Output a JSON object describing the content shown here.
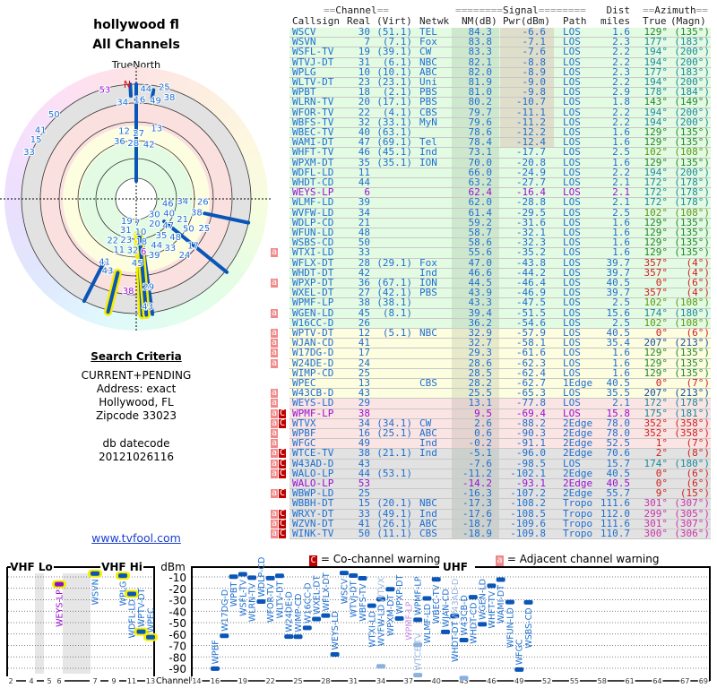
{
  "left": {
    "title": "hollywood fl",
    "subtitle": "All Channels",
    "true_north": "TrueNorth",
    "north_mark": "N",
    "search_criteria_heading": "Search Criteria",
    "criteria": [
      "CURRENT+PENDING",
      "Address: exact",
      "Hollywood, FL",
      "Zipcode 33023"
    ],
    "db_datecode_label": "db datecode",
    "db_datecode": "20121026116",
    "link": "www.tvfool.com"
  },
  "header": {
    "channel": "Channel",
    "signal": "Signal",
    "dist": "Dist",
    "azimuth": "Azimuth",
    "callsign": "Callsign",
    "real": "Real",
    "virt": "(Virt)",
    "netwk": "Netwk",
    "nm": "NM(dB)",
    "pwr": "Pwr(dBm)",
    "path": "Path",
    "miles": "miles",
    "true": "True",
    "magn": "(Magn)"
  },
  "colors": {
    "zone_green": "#e3fbe3",
    "zone_yellow": "#fdfde0",
    "zone_red": "#fbe4e4",
    "zone_gray": "#e2e2e2",
    "text_blue": "#1e6fd0",
    "text_purple": "#9a10d0",
    "adjacent_flag": "#f08a8a",
    "cochannel_flag": "#c00000",
    "bar_blue": "#0a55b8",
    "vhf_outline": "#f5ee00"
  },
  "rows": [
    {
      "call": "WSCV",
      "real": "30",
      "virt": "(51.1)",
      "net": "TEL",
      "nm": "84.3",
      "pwr": "-6.6",
      "path": "LOS",
      "dist": "1.6",
      "az": "129°",
      "mag": "(135°)",
      "zone": "green"
    },
    {
      "call": "WSVN",
      "real": "7",
      "virt": "(7.1)",
      "net": "Fox",
      "nm": "83.8",
      "pwr": "-7.1",
      "path": "LOS",
      "dist": "2.3",
      "az": "177°",
      "mag": "(183°)",
      "zone": "green"
    },
    {
      "call": "WSFL-TV",
      "real": "19",
      "virt": "(39.1)",
      "net": "CW",
      "nm": "83.3",
      "pwr": "-7.6",
      "path": "LOS",
      "dist": "2.2",
      "az": "194°",
      "mag": "(200°)",
      "zone": "green"
    },
    {
      "call": "WTVJ-DT",
      "real": "31",
      "virt": "(6.1)",
      "net": "NBC",
      "nm": "82.1",
      "pwr": "-8.8",
      "path": "LOS",
      "dist": "2.2",
      "az": "194°",
      "mag": "(200°)",
      "zone": "green"
    },
    {
      "call": "WPLG",
      "real": "10",
      "virt": "(10.1)",
      "net": "ABC",
      "nm": "82.0",
      "pwr": "-8.9",
      "path": "LOS",
      "dist": "2.3",
      "az": "177°",
      "mag": "(183°)",
      "zone": "green"
    },
    {
      "call": "WLTV-DT",
      "real": "23",
      "virt": "(23.1)",
      "net": "Uni",
      "nm": "81.9",
      "pwr": "-9.0",
      "path": "LOS",
      "dist": "2.2",
      "az": "194°",
      "mag": "(200°)",
      "zone": "green"
    },
    {
      "call": "WPBT",
      "real": "18",
      "virt": "(2.1)",
      "net": "PBS",
      "nm": "81.0",
      "pwr": "-9.8",
      "path": "LOS",
      "dist": "2.9",
      "az": "178°",
      "mag": "(184°)",
      "zone": "green"
    },
    {
      "call": "WLRN-TV",
      "real": "20",
      "virt": "(17.1)",
      "net": "PBS",
      "nm": "80.2",
      "pwr": "-10.7",
      "path": "LOS",
      "dist": "1.8",
      "az": "143°",
      "mag": "(149°)",
      "zone": "green"
    },
    {
      "call": "WFOR-TV",
      "real": "22",
      "virt": "(4.1)",
      "net": "CBS",
      "nm": "79.7",
      "pwr": "-11.1",
      "path": "LOS",
      "dist": "2.2",
      "az": "194°",
      "mag": "(200°)",
      "zone": "green"
    },
    {
      "call": "WBFS-TV",
      "real": "32",
      "virt": "(33.1)",
      "net": "MyN",
      "nm": "79.6",
      "pwr": "-11.2",
      "path": "LOS",
      "dist": "2.2",
      "az": "194°",
      "mag": "(200°)",
      "zone": "green"
    },
    {
      "call": "WBEC-TV",
      "real": "40",
      "virt": "(63.1)",
      "net": "",
      "nm": "78.6",
      "pwr": "-12.2",
      "path": "LOS",
      "dist": "1.6",
      "az": "129°",
      "mag": "(135°)",
      "zone": "green"
    },
    {
      "call": "WAMI-DT",
      "real": "47",
      "virt": "(69.1)",
      "net": "Tel",
      "nm": "78.4",
      "pwr": "-12.4",
      "path": "LOS",
      "dist": "1.6",
      "az": "129°",
      "mag": "(135°)",
      "zone": "green"
    },
    {
      "call": "WHFT-TV",
      "real": "46",
      "virt": "(45.1)",
      "net": "Ind",
      "nm": "73.1",
      "pwr": "-17.7",
      "path": "LOS",
      "dist": "2.5",
      "az": "102°",
      "mag": "(108°)",
      "zone": "green"
    },
    {
      "call": "WPXM-DT",
      "real": "35",
      "virt": "(35.1)",
      "net": "ION",
      "nm": "70.0",
      "pwr": "-20.8",
      "path": "LOS",
      "dist": "1.6",
      "az": "129°",
      "mag": "(135°)",
      "zone": "green"
    },
    {
      "call": "WDFL-LD",
      "real": "11",
      "virt": "",
      "net": "",
      "nm": "66.0",
      "pwr": "-24.9",
      "path": "LOS",
      "dist": "2.2",
      "az": "194°",
      "mag": "(200°)",
      "zone": "green"
    },
    {
      "call": "WHDT-CD",
      "real": "44",
      "virt": "",
      "net": "",
      "nm": "63.2",
      "pwr": "-27.7",
      "path": "LOS",
      "dist": "2.1",
      "az": "172°",
      "mag": "(178°)",
      "zone": "green"
    },
    {
      "call": "WEYS-LP",
      "real": "6",
      "virt": "",
      "net": "",
      "nm": "62.4",
      "pwr": "-16.4",
      "path": "LOS",
      "dist": "2.1",
      "az": "172°",
      "mag": "(178°)",
      "zone": "green",
      "purple": true
    },
    {
      "call": "WLMF-LD",
      "real": "39",
      "virt": "",
      "net": "",
      "nm": "62.0",
      "pwr": "-28.8",
      "path": "LOS",
      "dist": "2.1",
      "az": "172°",
      "mag": "(178°)",
      "zone": "green"
    },
    {
      "call": "WVFW-LD",
      "real": "34",
      "virt": "",
      "net": "",
      "nm": "61.4",
      "pwr": "-29.5",
      "path": "LOS",
      "dist": "2.5",
      "az": "102°",
      "mag": "(108°)",
      "zone": "green"
    },
    {
      "call": "WDLP-CD",
      "real": "21",
      "virt": "",
      "net": "",
      "nm": "59.2",
      "pwr": "-31.6",
      "path": "LOS",
      "dist": "1.6",
      "az": "129°",
      "mag": "(135°)",
      "zone": "green"
    },
    {
      "call": "WFUN-LD",
      "real": "48",
      "virt": "",
      "net": "",
      "nm": "58.7",
      "pwr": "-32.1",
      "path": "LOS",
      "dist": "1.6",
      "az": "129°",
      "mag": "(135°)",
      "zone": "green"
    },
    {
      "call": "WSBS-CD",
      "real": "50",
      "virt": "",
      "net": "",
      "nm": "58.6",
      "pwr": "-32.3",
      "path": "LOS",
      "dist": "1.6",
      "az": "129°",
      "mag": "(135°)",
      "zone": "green"
    },
    {
      "call": "WTXI-LD",
      "real": "33",
      "virt": "",
      "net": "",
      "nm": "55.6",
      "pwr": "-35.2",
      "path": "LOS",
      "dist": "1.6",
      "az": "129°",
      "mag": "(135°)",
      "zone": "green",
      "adj": "a"
    },
    {
      "call": "WFLX-DT",
      "real": "28",
      "virt": "(29.1)",
      "net": "Fox",
      "nm": "47.0",
      "pwr": "-43.8",
      "path": "LOS",
      "dist": "39.7",
      "az": "357°",
      "mag": "(4°)",
      "zone": "green"
    },
    {
      "call": "WHDT-DT",
      "real": "42",
      "virt": "",
      "net": "Ind",
      "nm": "46.6",
      "pwr": "-44.2",
      "path": "LOS",
      "dist": "39.7",
      "az": "357°",
      "mag": "(4°)",
      "zone": "green"
    },
    {
      "call": "WPXP-DT",
      "real": "36",
      "virt": "(67.1)",
      "net": "ION",
      "nm": "44.5",
      "pwr": "-46.4",
      "path": "LOS",
      "dist": "40.5",
      "az": "0°",
      "mag": "(6°)",
      "zone": "green",
      "adj": "a"
    },
    {
      "call": "WXEL-DT",
      "real": "27",
      "virt": "(42.1)",
      "net": "PBS",
      "nm": "43.9",
      "pwr": "-46.9",
      "path": "LOS",
      "dist": "39.7",
      "az": "357°",
      "mag": "(4°)",
      "zone": "green"
    },
    {
      "call": "WPMF-LP",
      "real": "38",
      "virt": "(38.1)",
      "net": "",
      "nm": "43.3",
      "pwr": "-47.5",
      "path": "LOS",
      "dist": "2.5",
      "az": "102°",
      "mag": "(108°)",
      "zone": "green"
    },
    {
      "call": "WGEN-LD",
      "real": "45",
      "virt": "(8.1)",
      "net": "",
      "nm": "39.4",
      "pwr": "-51.5",
      "path": "LOS",
      "dist": "15.6",
      "az": "174°",
      "mag": "(180°)",
      "zone": "green",
      "adj": "a"
    },
    {
      "call": "W16CC-D",
      "real": "26",
      "virt": "",
      "net": "",
      "nm": "36.2",
      "pwr": "-54.6",
      "path": "LOS",
      "dist": "2.5",
      "az": "102°",
      "mag": "(108°)",
      "zone": "green"
    },
    {
      "call": "WPTV-DT",
      "real": "12",
      "virt": "(5.1)",
      "net": "NBC",
      "nm": "32.9",
      "pwr": "-57.9",
      "path": "LOS",
      "dist": "40.5",
      "az": "0°",
      "mag": "(6°)",
      "zone": "yellow",
      "adj": "a"
    },
    {
      "call": "WJAN-CD",
      "real": "41",
      "virt": "",
      "net": "",
      "nm": "32.7",
      "pwr": "-58.1",
      "path": "LOS",
      "dist": "35.4",
      "az": "207°",
      "mag": "(213°)",
      "zone": "yellow",
      "adj": "a"
    },
    {
      "call": "W17DG-D",
      "real": "17",
      "virt": "",
      "net": "",
      "nm": "29.3",
      "pwr": "-61.6",
      "path": "LOS",
      "dist": "1.6",
      "az": "129°",
      "mag": "(135°)",
      "zone": "yellow",
      "adj": "a"
    },
    {
      "call": "W24DE-D",
      "real": "24",
      "virt": "",
      "net": "",
      "nm": "28.6",
      "pwr": "-62.3",
      "path": "LOS",
      "dist": "1.6",
      "az": "129°",
      "mag": "(135°)",
      "zone": "yellow",
      "adj": "a"
    },
    {
      "call": "WIMP-CD",
      "real": "25",
      "virt": "",
      "net": "",
      "nm": "28.5",
      "pwr": "-62.4",
      "path": "LOS",
      "dist": "1.6",
      "az": "129°",
      "mag": "(135°)",
      "zone": "yellow"
    },
    {
      "call": "WPEC",
      "real": "13",
      "virt": "",
      "net": "CBS",
      "nm": "28.2",
      "pwr": "-62.7",
      "path": "1Edge",
      "dist": "40.5",
      "az": "0°",
      "mag": "(7°)",
      "zone": "yellow"
    },
    {
      "call": "W43CB-D",
      "real": "43",
      "virt": "",
      "net": "",
      "nm": "25.5",
      "pwr": "-65.3",
      "path": "LOS",
      "dist": "35.5",
      "az": "207°",
      "mag": "(213°)",
      "zone": "yellow",
      "adj": "a"
    },
    {
      "call": "WEYS-LD",
      "real": "29",
      "virt": "",
      "net": "",
      "nm": "13.1",
      "pwr": "-77.8",
      "path": "LOS",
      "dist": "2.1",
      "az": "172°",
      "mag": "(178°)",
      "zone": "red",
      "adj": "a"
    },
    {
      "call": "WPMF-LP",
      "real": "38",
      "virt": "",
      "net": "",
      "nm": "9.5",
      "pwr": "-69.4",
      "path": "LOS",
      "dist": "15.8",
      "az": "175°",
      "mag": "(181°)",
      "zone": "red",
      "adj": "a",
      "co": "C",
      "purple": true
    },
    {
      "call": "WTVX",
      "real": "34",
      "virt": "(34.1)",
      "net": "CW",
      "nm": "2.6",
      "pwr": "-88.2",
      "path": "2Edge",
      "dist": "78.0",
      "az": "352°",
      "mag": "(358°)",
      "zone": "red",
      "adj": "a",
      "co": "C"
    },
    {
      "call": "WPBF",
      "real": "16",
      "virt": "(25.1)",
      "net": "ABC",
      "nm": "0.6",
      "pwr": "-90.3",
      "path": "2Edge",
      "dist": "78.0",
      "az": "352°",
      "mag": "(358°)",
      "zone": "red",
      "adj": "a"
    },
    {
      "call": "WFGC",
      "real": "49",
      "virt": "",
      "net": "Ind",
      "nm": "-0.2",
      "pwr": "-91.1",
      "path": "2Edge",
      "dist": "52.5",
      "az": "1°",
      "mag": "(7°)",
      "zone": "red",
      "adj": "a"
    },
    {
      "call": "WTCE-TV",
      "real": "38",
      "virt": "(21.1)",
      "net": "Ind",
      "nm": "-5.1",
      "pwr": "-96.0",
      "path": "2Edge",
      "dist": "70.6",
      "az": "2°",
      "mag": "(8°)",
      "zone": "gray",
      "adj": "a",
      "co": "C"
    },
    {
      "call": "W43AD-D",
      "real": "43",
      "virt": "",
      "net": "",
      "nm": "-7.6",
      "pwr": "-98.5",
      "path": "LOS",
      "dist": "15.7",
      "az": "174°",
      "mag": "(180°)",
      "zone": "gray",
      "adj": "a",
      "co": "C"
    },
    {
      "call": "WALO-LP",
      "real": "44",
      "virt": "(53.1)",
      "net": "",
      "nm": "-11.2",
      "pwr": "-102.1",
      "path": "2Edge",
      "dist": "40.5",
      "az": "0°",
      "mag": "(6°)",
      "zone": "gray",
      "adj": "a",
      "co": "C"
    },
    {
      "call": "WALO-LP",
      "real": "53",
      "virt": "",
      "net": "",
      "nm": "-14.2",
      "pwr": "-93.1",
      "path": "2Edge",
      "dist": "40.5",
      "az": "0°",
      "mag": "(6°)",
      "zone": "gray",
      "purple": true
    },
    {
      "call": "WBWP-LD",
      "real": "25",
      "virt": "",
      "net": "",
      "nm": "-16.3",
      "pwr": "-107.2",
      "path": "2Edge",
      "dist": "55.7",
      "az": "9°",
      "mag": "(15°)",
      "zone": "gray",
      "adj": "a",
      "co": "C"
    },
    {
      "call": "WBBH-DT",
      "real": "15",
      "virt": "(20.1)",
      "net": "NBC",
      "nm": "-17.3",
      "pwr": "-108.2",
      "path": "Tropo",
      "dist": "111.6",
      "az": "301°",
      "mag": "(307°)",
      "zone": "gray"
    },
    {
      "call": "WRXY-DT",
      "real": "33",
      "virt": "(49.1)",
      "net": "Ind",
      "nm": "-17.6",
      "pwr": "-108.5",
      "path": "Tropo",
      "dist": "112.0",
      "az": "299°",
      "mag": "(305°)",
      "zone": "gray",
      "adj": "a",
      "co": "C"
    },
    {
      "call": "WZVN-DT",
      "real": "41",
      "virt": "(26.1)",
      "net": "ABC",
      "nm": "-18.7",
      "pwr": "-109.6",
      "path": "Tropo",
      "dist": "111.6",
      "az": "301°",
      "mag": "(307°)",
      "zone": "gray",
      "adj": "a",
      "co": "C"
    },
    {
      "call": "WINK-TV",
      "real": "50",
      "virt": "(11.1)",
      "net": "CBS",
      "nm": "-18.9",
      "pwr": "-109.8",
      "path": "Tropo",
      "dist": "110.7",
      "az": "300°",
      "mag": "(306°)",
      "zone": "gray",
      "adj": "a",
      "co": "C"
    }
  ],
  "legend": {
    "co_flag": "C",
    "co_text": "= Co-channel warning",
    "adj_flag": "a",
    "adj_text": "= Adjacent channel warning"
  },
  "spectrum": {
    "vhf_lo_label": "VHF Lo",
    "vhf_hi_label": "VHF Hi",
    "uhf_label": "UHF",
    "y_unit": "dBm",
    "x_label": "Channel",
    "y_ticks": [
      "-10",
      "-20",
      "-30",
      "-40",
      "-50",
      "-60",
      "-70",
      "-80",
      "-90"
    ],
    "vhf_ticks": [
      "2",
      "4",
      "5",
      "6",
      "7",
      "9",
      "11",
      "13"
    ],
    "uhf_ticks": [
      "14",
      "16",
      "19",
      "22",
      "25",
      "28",
      "31",
      "34",
      "37",
      "40",
      "43",
      "46",
      "49",
      "52",
      "55",
      "58",
      "61",
      "64",
      "67",
      "69"
    ],
    "stations": [
      {
        "call": "WEYS-LP",
        "ch": 6,
        "dbm": -16.4,
        "style": "purple"
      },
      {
        "call": "WSVN",
        "ch": 7,
        "dbm": -7.1,
        "style": "vhf"
      },
      {
        "call": "WPLG",
        "ch": 10,
        "dbm": -8.9,
        "style": "vhf"
      },
      {
        "call": "WDFL-LD",
        "ch": 11,
        "dbm": -24.9,
        "style": "vhf"
      },
      {
        "call": "WPTV-DT",
        "ch": 12,
        "dbm": -57.9,
        "style": "vhf"
      },
      {
        "call": "WPEC",
        "ch": 13,
        "dbm": -62.7,
        "style": "vhf"
      },
      {
        "call": "WPBF",
        "ch": 16,
        "dbm": -90.3,
        "style": "normal"
      },
      {
        "call": "W17DG-D",
        "ch": 17,
        "dbm": -61.6,
        "style": "normal"
      },
      {
        "call": "WPBT",
        "ch": 18,
        "dbm": -9.8,
        "style": "normal"
      },
      {
        "call": "WSFL-TV",
        "ch": 19,
        "dbm": -7.6,
        "style": "normal"
      },
      {
        "call": "WLRN-TV",
        "ch": 20,
        "dbm": -10.7,
        "style": "normal"
      },
      {
        "call": "WDLP-CD",
        "ch": 21,
        "dbm": -31.6,
        "style": "normal"
      },
      {
        "call": "WFOR-TV",
        "ch": 22,
        "dbm": -11.1,
        "style": "normal"
      },
      {
        "call": "WLTV-DT",
        "ch": 23,
        "dbm": -9.0,
        "style": "normal"
      },
      {
        "call": "W24DE-D",
        "ch": 24,
        "dbm": -62.3,
        "style": "normal"
      },
      {
        "call": "WIMP-CD",
        "ch": 25,
        "dbm": -62.4,
        "style": "normal"
      },
      {
        "call": "W16CC-D",
        "ch": 26,
        "dbm": -54.6,
        "style": "normal"
      },
      {
        "call": "WXEL-DT",
        "ch": 27,
        "dbm": -46.9,
        "style": "normal"
      },
      {
        "call": "WFLX-DT",
        "ch": 28,
        "dbm": -43.8,
        "style": "normal"
      },
      {
        "call": "WEYS-LD",
        "ch": 29,
        "dbm": -77.8,
        "style": "normal"
      },
      {
        "call": "WSCV",
        "ch": 30,
        "dbm": -6.6,
        "style": "normal"
      },
      {
        "call": "WTVJ-DT",
        "ch": 31,
        "dbm": -8.8,
        "style": "normal"
      },
      {
        "call": "WBFS-TV",
        "ch": 32,
        "dbm": -11.2,
        "style": "normal"
      },
      {
        "call": "WTXI-LD",
        "ch": 33,
        "dbm": -35.2,
        "style": "normal"
      },
      {
        "call": "WVFW-LD",
        "ch": 34,
        "dbm": -29.5,
        "style": "normal"
      },
      {
        "call": "WTVX",
        "ch": 34,
        "dbm": -88.2,
        "style": "faded"
      },
      {
        "call": "WPXM-DT",
        "ch": 35,
        "dbm": -20.8,
        "style": "normal"
      },
      {
        "call": "WPXP-DT",
        "ch": 36,
        "dbm": -46.4,
        "style": "normal"
      },
      {
        "call": "WPMF-LP",
        "ch": 38,
        "dbm": -47.5,
        "style": "normal"
      },
      {
        "call": "WPMF-LP",
        "ch": 38,
        "dbm": -69.4,
        "style": "faded-purple"
      },
      {
        "call": "WTCE-TV",
        "ch": 38,
        "dbm": -96.0,
        "style": "faded"
      },
      {
        "call": "WLMF-LD",
        "ch": 39,
        "dbm": -28.8,
        "style": "normal"
      },
      {
        "call": "WBEC-TV",
        "ch": 40,
        "dbm": -12.2,
        "style": "normal"
      },
      {
        "call": "WJAN-CD",
        "ch": 41,
        "dbm": -58.1,
        "style": "normal"
      },
      {
        "call": "WHDT-DT",
        "ch": 42,
        "dbm": -44.2,
        "style": "normal"
      },
      {
        "call": "W43CB-D",
        "ch": 43,
        "dbm": -65.3,
        "style": "normal"
      },
      {
        "call": "W43AD-D",
        "ch": 43,
        "dbm": -98.5,
        "style": "faded"
      },
      {
        "call": "WHDT-CD",
        "ch": 44,
        "dbm": -27.7,
        "style": "normal"
      },
      {
        "call": "WGEN-LD",
        "ch": 45,
        "dbm": -51.5,
        "style": "normal"
      },
      {
        "call": "WHFT-TV",
        "ch": 46,
        "dbm": -17.7,
        "style": "normal"
      },
      {
        "call": "WAMI-DT",
        "ch": 47,
        "dbm": -12.4,
        "style": "normal"
      },
      {
        "call": "WFUN-LD",
        "ch": 48,
        "dbm": -32.1,
        "style": "normal"
      },
      {
        "call": "WFGC",
        "ch": 49,
        "dbm": -91.1,
        "style": "normal"
      },
      {
        "call": "WSBS-CD",
        "ch": 50,
        "dbm": -32.3,
        "style": "normal"
      }
    ]
  }
}
